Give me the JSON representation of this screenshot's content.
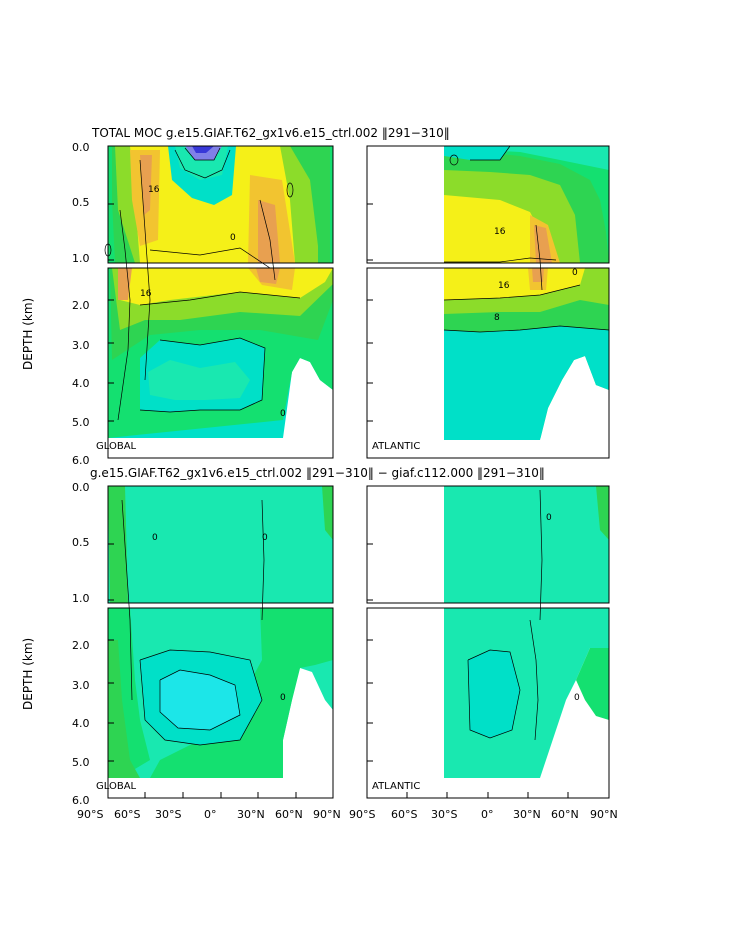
{
  "titles": {
    "top": "TOTAL MOC g.e15.GIAF.T62_gx1v6.e15_ctrl.002 ‖291−310‖",
    "bottom": "g.e15.GIAF.T62_gx1v6.e15_ctrl.002 ‖291−310‖ − giaf.c112.000 ‖291−310‖"
  },
  "axes": {
    "ylabel": "DEPTH (km)",
    "ylabel_upper_a": "DEPTH",
    "ylabel_upper_b": "(km)",
    "upper_ticks": [
      "0.0",
      "0.5",
      "1.0"
    ],
    "lower_ticks": [
      "2.0",
      "3.0",
      "4.0",
      "5.0",
      "6.0"
    ],
    "xticks_global": [
      "90°S",
      "60°S",
      "30°S",
      "0°",
      "30°N",
      "60°N",
      "90°N"
    ],
    "xticks_atlantic": [
      "90°S",
      "60°S",
      "30°S",
      "0°",
      "30°N",
      "60°N",
      "90°N"
    ]
  },
  "panel_labels": {
    "global": "GLOBAL",
    "atlantic": "ATLANTIC"
  },
  "colors": {
    "cyan": "#00e0c8",
    "aqua": "#19e8b0",
    "green_light": "#14e070",
    "green": "#2ed452",
    "lime": "#8cdc2a",
    "yellow": "#f5f018",
    "gold": "#f2c430",
    "orange": "#e8a050",
    "blue": "#3838d8"
  },
  "chart_data": [
    {
      "type": "heatmap",
      "panel": "TOTAL MOC GLOBAL",
      "x_range_deg": [
        -90,
        90
      ],
      "depth_range_km": [
        0,
        6
      ],
      "contour_labels": [
        "16",
        "16",
        "0",
        "0"
      ],
      "features": {
        "southern_cell_max": 16,
        "nadw_cell_max": 16,
        "bottom_cell": "negative"
      }
    },
    {
      "type": "heatmap",
      "panel": "TOTAL MOC ATLANTIC",
      "x_range_deg": [
        -30,
        90
      ],
      "depth_range_km": [
        0,
        6
      ],
      "contour_labels": [
        "16",
        "16",
        "8",
        "0"
      ],
      "features": {
        "nadw_cell_max": 16
      }
    },
    {
      "type": "heatmap",
      "panel": "DIFFERENCE GLOBAL",
      "x_range_deg": [
        -90,
        90
      ],
      "depth_range_km": [
        0,
        6
      ],
      "contour_labels": [
        "0",
        "0",
        "0"
      ]
    },
    {
      "type": "heatmap",
      "panel": "DIFFERENCE ATLANTIC",
      "x_range_deg": [
        -30,
        90
      ],
      "depth_range_km": [
        0,
        6
      ],
      "contour_labels": [
        "0",
        "0"
      ]
    }
  ]
}
